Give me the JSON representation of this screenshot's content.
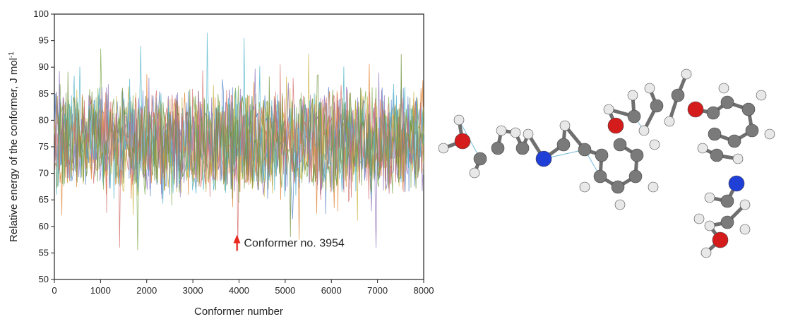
{
  "chart_data": {
    "type": "line",
    "title": "",
    "xlabel": "Conformer number",
    "ylabel": "Relative energy of the conformer, J mol",
    "ylabel_superscript": "-1",
    "xlim": [
      0,
      8000
    ],
    "ylim": [
      50,
      100
    ],
    "x_ticks": [
      "0",
      "1000",
      "2000",
      "3000",
      "4000",
      "5000",
      "6000",
      "7000",
      "8000"
    ],
    "y_ticks": [
      "50",
      "55",
      "60",
      "65",
      "70",
      "75",
      "80",
      "85",
      "90",
      "95",
      "100"
    ],
    "grid": false,
    "legend": "none",
    "series_colors": [
      "#4f7fc4",
      "#e0812e",
      "#7aa84a",
      "#c9b13a",
      "#8a6bb8",
      "#4bb3c8",
      "#d46a6a",
      "#6b8f3a"
    ],
    "series_summary": {
      "n_conformers": 8000,
      "typical_range": [
        65,
        87
      ],
      "mean": 76,
      "max": [
        3300,
        96.5
      ],
      "min_labeled": [
        3954,
        55.5
      ],
      "notable_spikes": [
        {
          "x": 1000,
          "y": 93.5
        },
        {
          "x": 1850,
          "y": 94
        },
        {
          "x": 3300,
          "y": 96.5
        },
        {
          "x": 4100,
          "y": 95.5
        },
        {
          "x": 5500,
          "y": 92.5
        },
        {
          "x": 7500,
          "y": 92.5
        },
        {
          "x": 1400,
          "y": 56
        },
        {
          "x": 1800,
          "y": 55.5
        },
        {
          "x": 3954,
          "y": 55.5
        },
        {
          "x": 6950,
          "y": 56
        },
        {
          "x": 5300,
          "y": 57.5
        },
        {
          "x": 5100,
          "y": 58
        }
      ]
    },
    "annotation": {
      "text": "Conformer no. 3954",
      "x": 3954,
      "y": 55.5,
      "arrow_color": "#e8281e"
    }
  },
  "molecule": {
    "atom_colors": {
      "carbon": "#7a7a7a",
      "hydrogen": "#e8e8e8",
      "oxygen": "#d41c1c",
      "nitrogen": "#1f3fd6"
    },
    "contact_color": "#3a9cc8"
  }
}
